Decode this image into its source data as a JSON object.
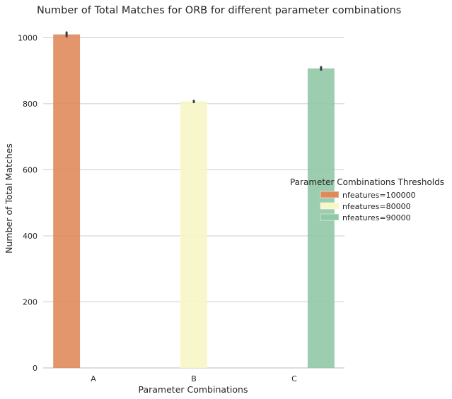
{
  "chart_data": {
    "type": "bar",
    "title": "Number of Total Matches for ORB for different parameter combinations",
    "xlabel": "Parameter Combinations",
    "ylabel": "Number of Total Matches",
    "categories": [
      "A",
      "B",
      "C"
    ],
    "ylim": [
      0,
      1050
    ],
    "yticks": [
      0,
      200,
      400,
      600,
      800,
      1000
    ],
    "grid": true,
    "legend": {
      "title": "Parameter Combinations Thresholds",
      "placement": "right"
    },
    "series": [
      {
        "name": "nfeatures=100000",
        "color": "#e08a5c",
        "values": [
          1010,
          0,
          0
        ],
        "error": [
          6,
          0,
          0
        ]
      },
      {
        "name": "nfeatures=80000",
        "color": "#f7f6c5",
        "values": [
          0,
          807,
          0
        ],
        "error": [
          0,
          2,
          0
        ]
      },
      {
        "name": "nfeatures=90000",
        "color": "#91c8a6",
        "values": [
          0,
          0,
          907
        ],
        "error": [
          0,
          0,
          4
        ]
      }
    ]
  }
}
